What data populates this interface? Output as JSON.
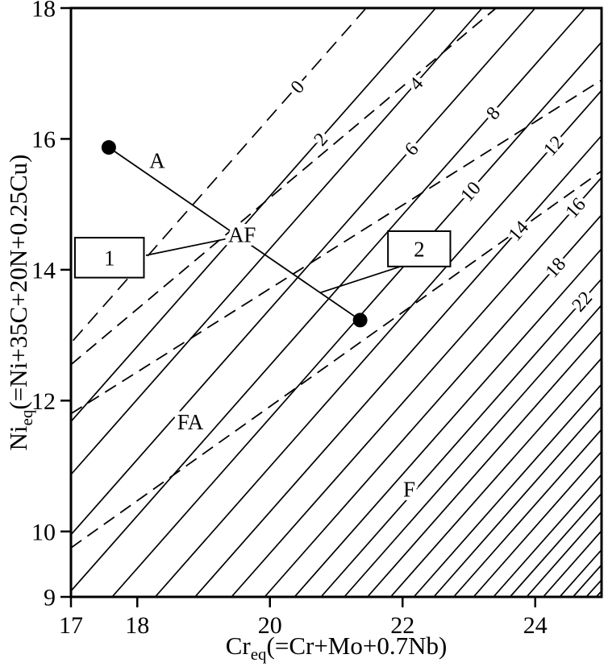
{
  "figure": {
    "ink_color": "#000000",
    "background_color": "#ffffff"
  },
  "chart_data": {
    "type": "line",
    "title": "",
    "xlabel": "Creq(=Cr+Mo+0.7Nb)",
    "ylabel": "Nieq(=Ni+35C+20N+0.25Cu)",
    "xlim": [
      17,
      25
    ],
    "ylim": [
      9,
      18
    ],
    "grid": false,
    "x_axis": {
      "prefix": "Cr",
      "subscript": "eq",
      "suffix": "(=Cr+Mo+0.7Nb)",
      "ticks": [
        17,
        18,
        20,
        22,
        24
      ]
    },
    "y_axis": {
      "prefix": "Ni",
      "subscript": "eq",
      "suffix": "(=Ni+35C+20N+0.25Cu)",
      "ticks": [
        9,
        10,
        12,
        14,
        16,
        18
      ]
    },
    "ferrite_number_lines": [
      {
        "fn": 0,
        "dashed": true,
        "x1": 21.45,
        "y1": 18.0,
        "x2": 17.0,
        "y2": 12.88,
        "label": "0",
        "lx": 20.41,
        "ly": 16.8
      },
      {
        "fn": 2,
        "dashed": false,
        "x1": 22.5,
        "y1": 18.0,
        "x2": 17.0,
        "y2": 11.68,
        "label": "2",
        "lx": 20.76,
        "ly": 16.0
      },
      {
        "fn": 4,
        "dashed": false,
        "x1": 23.2,
        "y1": 18.0,
        "x2": 17.0,
        "y2": 10.87,
        "label": "4",
        "lx": 22.2,
        "ly": 16.85
      },
      {
        "fn": 6,
        "dashed": false,
        "x1": 24.0,
        "y1": 18.0,
        "x2": 17.0,
        "y2": 9.95,
        "label": "6",
        "lx": 22.13,
        "ly": 15.85
      },
      {
        "fn": 8,
        "dashed": false,
        "x1": 24.75,
        "y1": 18.0,
        "x2": 17.0,
        "y2": 9.09,
        "label": "8",
        "lx": 23.36,
        "ly": 16.4
      },
      {
        "fn": 10,
        "dashed": false,
        "x1": 25.0,
        "y1": 17.48,
        "x2": 17.62,
        "y2": 9.0,
        "label": "10",
        "lx": 23.02,
        "ly": 15.2
      },
      {
        "fn": 12,
        "dashed": false,
        "x1": 25.0,
        "y1": 16.74,
        "x2": 18.27,
        "y2": 9.0,
        "label": "12",
        "lx": 24.27,
        "ly": 15.9
      },
      {
        "fn": 14,
        "dashed": false,
        "x1": 25.0,
        "y1": 16.05,
        "x2": 18.87,
        "y2": 9.0,
        "label": "14",
        "lx": 23.74,
        "ly": 14.6
      },
      {
        "fn": 16,
        "dashed": false,
        "x1": 25.0,
        "y1": 15.41,
        "x2": 19.42,
        "y2": 9.0,
        "label": "16",
        "lx": 24.6,
        "ly": 14.95
      },
      {
        "fn": 18,
        "dashed": false,
        "x1": 25.0,
        "y1": 14.84,
        "x2": 19.92,
        "y2": 9.0,
        "label": "18",
        "lx": 24.3,
        "ly": 14.04
      },
      {
        "fn": 20,
        "dashed": false,
        "x1": 25.0,
        "y1": 14.32,
        "x2": 20.37,
        "y2": 9.0,
        "label": null
      },
      {
        "fn": 22,
        "dashed": false,
        "x1": 25.0,
        "y1": 13.86,
        "x2": 20.77,
        "y2": 9.0,
        "label": "22",
        "lx": 24.7,
        "ly": 13.52
      }
    ],
    "extra_lines": [
      [
        25,
        13.46,
        21.12,
        9
      ],
      [
        25,
        13.06,
        21.47,
        9
      ],
      [
        25,
        12.65,
        21.82,
        9
      ],
      [
        25,
        12.25,
        22.17,
        9
      ],
      [
        25,
        11.91,
        22.47,
        9
      ],
      [
        25,
        11.56,
        22.77,
        9
      ],
      [
        25,
        11.22,
        23.07,
        9
      ],
      [
        25,
        10.87,
        23.37,
        9
      ],
      [
        25,
        10.58,
        23.62,
        9
      ],
      [
        25,
        10.3,
        23.87,
        9
      ],
      [
        25,
        10.01,
        24.12,
        9
      ],
      [
        25,
        9.72,
        24.37,
        9
      ],
      [
        25,
        9.49,
        24.57,
        9
      ],
      [
        25,
        9.26,
        24.77,
        9
      ],
      [
        25,
        9.09,
        24.92,
        9
      ]
    ],
    "boundaries": [
      {
        "name": "A-AF",
        "x1": 17,
        "y1": 12.55,
        "x2": 23.41,
        "y2": 18.0
      },
      {
        "name": "AF-FA",
        "x1": 17,
        "y1": 11.8,
        "x2": 25.0,
        "y2": 16.9
      },
      {
        "name": "FA-F",
        "x1": 17,
        "y1": 9.75,
        "x2": 25.0,
        "y2": 15.51
      }
    ],
    "region_labels": [
      {
        "text": "A",
        "x": 18.3,
        "y": 15.67
      },
      {
        "text": "AF",
        "x": 19.58,
        "y": 14.54
      },
      {
        "text": "FA",
        "x": 18.8,
        "y": 11.68
      },
      {
        "text": "F",
        "x": 22.1,
        "y": 10.65
      }
    ],
    "points": [
      {
        "name": "point-1",
        "x": 17.57,
        "y": 15.87
      },
      {
        "name": "point-2",
        "x": 21.36,
        "y": 13.23
      }
    ],
    "tie_line": {
      "x1": 17.57,
      "y1": 15.87,
      "x2": 21.36,
      "y2": 13.23
    },
    "callouts": [
      {
        "label": "1",
        "box": {
          "x1": 17.06,
          "y1": 14.49,
          "x2": 18.1,
          "y2": 13.88
        },
        "leader": {
          "x1": 18.13,
          "y1": 14.22,
          "x2": 19.33,
          "y2": 14.47
        }
      },
      {
        "label": "2",
        "box": {
          "x1": 21.78,
          "y1": 14.59,
          "x2": 22.72,
          "y2": 14.05
        },
        "leader": {
          "x1": 21.97,
          "y1": 14.05,
          "x2": 20.76,
          "y2": 13.65
        }
      }
    ]
  }
}
